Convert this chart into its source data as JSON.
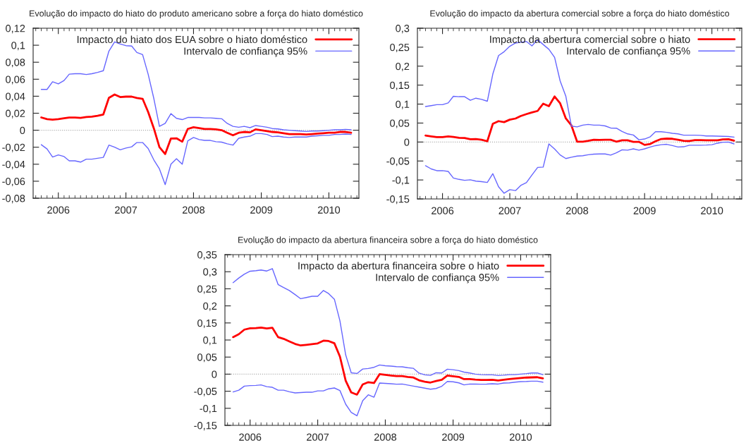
{
  "chart_data": [
    {
      "type": "line",
      "title": "Evolução do impacto do hiato do produto americano sobre a força do hiato doméstico",
      "legend": "top right",
      "x": [
        "2005-10",
        "2005-11",
        "2005-12",
        "2006-01",
        "2006-02",
        "2006-03",
        "2006-04",
        "2006-05",
        "2006-06",
        "2006-07",
        "2006-08",
        "2006-09",
        "2006-10",
        "2006-11",
        "2006-12",
        "2007-01",
        "2007-02",
        "2007-03",
        "2007-04",
        "2007-05",
        "2007-06",
        "2007-07",
        "2007-08",
        "2007-09",
        "2007-10",
        "2007-11",
        "2007-12",
        "2008-01",
        "2008-02",
        "2008-03",
        "2008-04",
        "2008-05",
        "2008-06",
        "2008-07",
        "2008-08",
        "2008-09",
        "2008-10",
        "2008-11",
        "2008-12",
        "2009-01",
        "2009-02",
        "2009-03",
        "2009-04",
        "2009-05",
        "2009-06",
        "2009-07",
        "2009-08",
        "2009-09",
        "2009-10",
        "2009-11",
        "2009-12",
        "2010-01",
        "2010-02",
        "2010-03",
        "2010-04",
        "2010-05"
      ],
      "xlim": [
        "2005-08-18",
        "2010-06-12"
      ],
      "xticks": [
        {
          "value": "2006-01",
          "label": "2006"
        },
        {
          "value": "2007-01",
          "label": "2007"
        },
        {
          "value": "2008-01",
          "label": "2008"
        },
        {
          "value": "2009-01",
          "label": "2009"
        },
        {
          "value": "2010-01",
          "label": "2010"
        }
      ],
      "ylim": [
        -0.08,
        0.12
      ],
      "yticks": [
        {
          "value": -0.08,
          "label": "-0,08"
        },
        {
          "value": -0.06,
          "label": "-0,06"
        },
        {
          "value": -0.04,
          "label": "-0,04"
        },
        {
          "value": -0.02,
          "label": "-0,02"
        },
        0,
        {
          "value": 0.02,
          "label": "0,02"
        },
        {
          "value": 0.04,
          "label": "0,04"
        },
        {
          "value": 0.06,
          "label": "0,06"
        },
        {
          "value": 0.08,
          "label": "0,08"
        },
        {
          "value": 0.1,
          "label": "0,1"
        },
        {
          "value": 0.12,
          "label": "0,12"
        }
      ],
      "ref_lines": [
        {
          "axis": "y",
          "value": 0,
          "color": "#aaaaaa",
          "line_style": "dotted"
        }
      ],
      "series": [
        {
          "name": "Impacto do hiato dos EUA sobre o hiato doméstico",
          "color": "#ff0000",
          "values": [
            0.015,
            0.013,
            0.0125,
            0.013,
            0.014,
            0.015,
            0.015,
            0.0145,
            0.0155,
            0.016,
            0.017,
            0.0185,
            0.038,
            0.042,
            0.039,
            0.0395,
            0.0395,
            0.038,
            0.037,
            0.0215,
            0.002,
            -0.02,
            -0.028,
            -0.0097,
            -0.0095,
            -0.0135,
            0.0015,
            0.0035,
            0.0025,
            0.0015,
            0.0015,
            0.001,
            0,
            -0.003,
            -0.006,
            -0.003,
            -0.002,
            -0.0025,
            0.001,
            0,
            -0.001,
            -0.002,
            -0.0025,
            -0.0035,
            -0.0045,
            -0.0045,
            -0.0045,
            -0.005,
            -0.0045,
            -0.004,
            -0.0035,
            -0.003,
            -0.003,
            -0.002,
            -0.002,
            -0.003
          ]
        },
        {
          "name": "Intervalo de confiança 95%",
          "color": "#6666ff",
          "values": [
            0.048,
            0.048,
            0.057,
            0.0545,
            0.0585,
            0.066,
            0.0665,
            0.0665,
            0.0655,
            0.0665,
            0.068,
            0.07,
            0.093,
            0.104,
            0.1015,
            0.0995,
            0.099,
            0.0915,
            0.089,
            0.066,
            0.037,
            0.0045,
            0.008,
            0.0195,
            0.014,
            0.0125,
            0.015,
            0.015,
            0.015,
            0.0145,
            0.0145,
            0.014,
            0.0135,
            0.008,
            0.0045,
            0.0035,
            0.0045,
            0.003,
            0.0055,
            0.0045,
            0.0035,
            0.002,
            0.0015,
            0.0005,
            0,
            -0.0005,
            -0.001,
            -0.0015,
            -0.001,
            -0.001,
            -0.0005,
            0,
            0.0005,
            0.0005,
            0.001,
            0.0005
          ]
        },
        {
          "color": "#6666ff",
          "values": [
            -0.017,
            -0.022,
            -0.0315,
            -0.029,
            -0.031,
            -0.036,
            -0.036,
            -0.0375,
            -0.034,
            -0.034,
            -0.033,
            -0.032,
            -0.0175,
            -0.02,
            -0.023,
            -0.021,
            -0.0195,
            -0.0145,
            -0.0145,
            -0.0215,
            -0.035,
            -0.0455,
            -0.064,
            -0.04,
            -0.0335,
            -0.04,
            -0.0125,
            -0.0085,
            -0.011,
            -0.012,
            -0.012,
            -0.0135,
            -0.014,
            -0.016,
            -0.0175,
            -0.0095,
            -0.008,
            -0.007,
            -0.004,
            -0.004,
            -0.005,
            -0.0075,
            -0.007,
            -0.008,
            -0.0085,
            -0.008,
            -0.008,
            -0.008,
            -0.007,
            -0.0065,
            -0.006,
            -0.006,
            -0.005,
            -0.005,
            -0.0045,
            -0.005
          ]
        }
      ]
    },
    {
      "type": "line",
      "title": "Evolução do impacto da abertura comercial sobre a força do hiato doméstico",
      "legend": "top right",
      "x": [
        "2005-10",
        "2005-11",
        "2005-12",
        "2006-01",
        "2006-02",
        "2006-03",
        "2006-04",
        "2006-05",
        "2006-06",
        "2006-07",
        "2006-08",
        "2006-09",
        "2006-10",
        "2006-11",
        "2006-12",
        "2007-01",
        "2007-02",
        "2007-03",
        "2007-04",
        "2007-05",
        "2007-06",
        "2007-07",
        "2007-08",
        "2007-09",
        "2007-10",
        "2007-11",
        "2007-12",
        "2008-01",
        "2008-02",
        "2008-03",
        "2008-04",
        "2008-05",
        "2008-06",
        "2008-07",
        "2008-08",
        "2008-09",
        "2008-10",
        "2008-11",
        "2008-12",
        "2009-01",
        "2009-02",
        "2009-03",
        "2009-04",
        "2009-05",
        "2009-06",
        "2009-07",
        "2009-08",
        "2009-09",
        "2009-10",
        "2009-11",
        "2009-12",
        "2010-01",
        "2010-02",
        "2010-03",
        "2010-04",
        "2010-05"
      ],
      "xlim": [
        "2005-08-18",
        "2010-06-12"
      ],
      "xticks": [
        {
          "value": "2006-01",
          "label": "2006"
        },
        {
          "value": "2007-01",
          "label": "2007"
        },
        {
          "value": "2008-01",
          "label": "2008"
        },
        {
          "value": "2009-01",
          "label": "2009"
        },
        {
          "value": "2010-01",
          "label": "2010"
        }
      ],
      "ylim": [
        -0.15,
        0.3
      ],
      "yticks": [
        {
          "value": -0.15,
          "label": "-0,15"
        },
        {
          "value": -0.1,
          "label": "-0,1"
        },
        {
          "value": -0.05,
          "label": "-0,05"
        },
        0,
        {
          "value": 0.05,
          "label": "0,05"
        },
        {
          "value": 0.1,
          "label": "0,1"
        },
        {
          "value": 0.15,
          "label": "0,15"
        },
        {
          "value": 0.2,
          "label": "0,2"
        },
        {
          "value": 0.25,
          "label": "0,25"
        },
        {
          "value": 0.3,
          "label": "0,3"
        }
      ],
      "ref_lines": [
        {
          "axis": "y",
          "value": 0,
          "color": "#aaaaaa",
          "line_style": "dotted"
        }
      ],
      "series": [
        {
          "name": "Impacto da abertura comercial sobre o hiato",
          "color": "#ff0000",
          "values": [
            0.017,
            0.015,
            0.013,
            0.013,
            0.015,
            0.0135,
            0.011,
            0.0105,
            0.0075,
            0.008,
            0.006,
            0.002,
            0.048,
            0.055,
            0.0525,
            0.059,
            0.062,
            0.0685,
            0.0735,
            0.078,
            0.082,
            0.101,
            0.0945,
            0.12,
            0.102,
            0.062,
            0.044,
            0.001,
            0.001,
            0.003,
            0.006,
            0.0055,
            0.006,
            0.006,
            0.001,
            0.0045,
            0.0045,
            0.0005,
            0.0005,
            -0.0075,
            -0.005,
            0.002,
            0.008,
            0.009,
            0.0085,
            0.006,
            0.003,
            0.0025,
            0.005,
            0.005,
            0.0045,
            0.0045,
            0.0045,
            0.007,
            0.0075,
            0.0035
          ]
        },
        {
          "name": "Intervalo de confiança 95%",
          "color": "#6666ff",
          "values": [
            0.0935,
            0.096,
            0.0985,
            0.0985,
            0.103,
            0.1205,
            0.1195,
            0.1195,
            0.11,
            0.1155,
            0.1125,
            0.1075,
            0.1795,
            0.228,
            0.238,
            0.2525,
            0.261,
            0.263,
            0.265,
            0.2535,
            0.27,
            0.257,
            0.2445,
            0.223,
            0.161,
            0.1205,
            0.042,
            0.04,
            0.0445,
            0.0465,
            0.0445,
            0.0445,
            0.0425,
            0.037,
            0.0365,
            0.028,
            0.0215,
            0.0185,
            0.006,
            0.008,
            0.014,
            0.027,
            0.027,
            0.0255,
            0.023,
            0.0215,
            0.018,
            0.018,
            0.018,
            0.0175,
            0.016,
            0.016,
            0.0155,
            0.015,
            0.0145,
            0.013
          ]
        },
        {
          "color": "#6666ff",
          "values": [
            -0.0625,
            -0.071,
            -0.0755,
            -0.0755,
            -0.0775,
            -0.095,
            -0.0985,
            -0.101,
            -0.0995,
            -0.103,
            -0.1045,
            -0.1065,
            -0.0835,
            -0.118,
            -0.135,
            -0.1255,
            -0.128,
            -0.1145,
            -0.107,
            -0.087,
            -0.067,
            -0.066,
            -0.005,
            -0.0185,
            -0.034,
            -0.0435,
            -0.04,
            -0.037,
            -0.036,
            -0.0335,
            -0.032,
            -0.0315,
            -0.0315,
            -0.0345,
            -0.0285,
            -0.0205,
            -0.0215,
            -0.018,
            -0.0215,
            -0.018,
            -0.013,
            -0.0095,
            -0.007,
            -0.006,
            -0.0095,
            -0.013,
            -0.0125,
            -0.0085,
            -0.0085,
            -0.0085,
            -0.008,
            -0.007,
            -0.003,
            -0.0005,
            0,
            -0.005
          ]
        }
      ]
    },
    {
      "type": "line",
      "title": "Evolução do impacto da abertura financeira sobre a força do hiato doméstico",
      "legend": "top right",
      "x": [
        "2005-10",
        "2005-11",
        "2005-12",
        "2006-01",
        "2006-02",
        "2006-03",
        "2006-04",
        "2006-05",
        "2006-06",
        "2006-07",
        "2006-08",
        "2006-09",
        "2006-10",
        "2006-11",
        "2006-12",
        "2007-01",
        "2007-02",
        "2007-03",
        "2007-04",
        "2007-05",
        "2007-06",
        "2007-07",
        "2007-08",
        "2007-09",
        "2007-10",
        "2007-11",
        "2007-12",
        "2008-01",
        "2008-02",
        "2008-03",
        "2008-04",
        "2008-05",
        "2008-06",
        "2008-07",
        "2008-08",
        "2008-09",
        "2008-10",
        "2008-11",
        "2008-12",
        "2009-01",
        "2009-02",
        "2009-03",
        "2009-04",
        "2009-05",
        "2009-06",
        "2009-07",
        "2009-08",
        "2009-09",
        "2009-10",
        "2009-11",
        "2009-12",
        "2010-01",
        "2010-02",
        "2010-03",
        "2010-04",
        "2010-05"
      ],
      "xlim": [
        "2005-08-18",
        "2010-06-12"
      ],
      "xticks": [
        {
          "value": "2006-01",
          "label": "2006"
        },
        {
          "value": "2007-01",
          "label": "2007"
        },
        {
          "value": "2008-01",
          "label": "2008"
        },
        {
          "value": "2009-01",
          "label": "2009"
        },
        {
          "value": "2010-01",
          "label": "2010"
        }
      ],
      "ylim": [
        -0.15,
        0.35
      ],
      "yticks": [
        {
          "value": -0.15,
          "label": "-0,15"
        },
        {
          "value": -0.1,
          "label": "-0,1"
        },
        {
          "value": -0.05,
          "label": "-0,05"
        },
        0,
        {
          "value": 0.05,
          "label": "0,05"
        },
        {
          "value": 0.1,
          "label": "0,1"
        },
        {
          "value": 0.15,
          "label": "0,15"
        },
        {
          "value": 0.2,
          "label": "0,2"
        },
        {
          "value": 0.25,
          "label": "0,25"
        },
        {
          "value": 0.3,
          "label": "0,3"
        },
        {
          "value": 0.35,
          "label": "0,35"
        }
      ],
      "ref_lines": [
        {
          "axis": "y",
          "value": 0,
          "color": "#aaaaaa",
          "line_style": "dotted"
        }
      ],
      "series": [
        {
          "name": "Impacto da abertura financeira sobre o hiato",
          "color": "#ff0000",
          "values": [
            0.1085,
            0.117,
            0.1305,
            0.1345,
            0.135,
            0.1365,
            0.134,
            0.136,
            0.1085,
            0.1035,
            0.096,
            0.0885,
            0.084,
            0.086,
            0.088,
            0.09,
            0.098,
            0.097,
            0.0905,
            0.0515,
            -0.019,
            -0.0535,
            -0.06,
            -0.03,
            -0.0235,
            -0.026,
            0,
            -0.002,
            -0.004,
            -0.0055,
            -0.0055,
            -0.008,
            -0.01,
            -0.018,
            -0.022,
            -0.0245,
            -0.02,
            -0.0165,
            -0.004,
            -0.006,
            -0.008,
            -0.0145,
            -0.0145,
            -0.016,
            -0.017,
            -0.017,
            -0.0165,
            -0.0185,
            -0.0165,
            -0.0145,
            -0.013,
            -0.0115,
            -0.01,
            -0.0095,
            -0.009,
            -0.0125
          ]
        },
        {
          "name": "Intervalo de confiança 95%",
          "color": "#6666ff",
          "values": [
            0.268,
            0.2815,
            0.293,
            0.3015,
            0.303,
            0.305,
            0.302,
            0.309,
            0.2625,
            0.2535,
            0.245,
            0.233,
            0.221,
            0.2245,
            0.228,
            0.228,
            0.245,
            0.236,
            0.2195,
            0.156,
            0.0565,
            0.004,
            0.002,
            0.015,
            0.0165,
            0.02,
            0.027,
            0.0245,
            0.0235,
            0.022,
            0.0215,
            0.019,
            0.017,
            0.003,
            -0.002,
            -0.0035,
            0.004,
            0.0035,
            0.0145,
            0.013,
            0.0105,
            0.006,
            0.0035,
            0,
            -0.0015,
            -0.002,
            -0.002,
            -0.004,
            -0.003,
            -0.0015,
            -0.0015,
            0,
            0.0015,
            0.0035,
            0.0035,
            -0.0015
          ]
        },
        {
          "color": "#6666ff",
          "values": [
            -0.052,
            -0.047,
            -0.035,
            -0.0335,
            -0.033,
            -0.0315,
            -0.0365,
            -0.0385,
            -0.047,
            -0.047,
            -0.0515,
            -0.055,
            -0.054,
            -0.053,
            -0.053,
            -0.049,
            -0.049,
            -0.043,
            -0.0405,
            -0.048,
            -0.088,
            -0.112,
            -0.122,
            -0.0775,
            -0.0605,
            -0.0675,
            -0.026,
            -0.027,
            -0.028,
            -0.0295,
            -0.029,
            -0.032,
            -0.035,
            -0.038,
            -0.041,
            -0.044,
            -0.042,
            -0.0355,
            -0.0215,
            -0.0225,
            -0.0255,
            -0.0315,
            -0.029,
            -0.029,
            -0.0295,
            -0.029,
            -0.028,
            -0.029,
            -0.026,
            -0.0255,
            -0.0235,
            -0.022,
            -0.0215,
            -0.0205,
            -0.0205,
            -0.0235
          ]
        }
      ]
    }
  ]
}
